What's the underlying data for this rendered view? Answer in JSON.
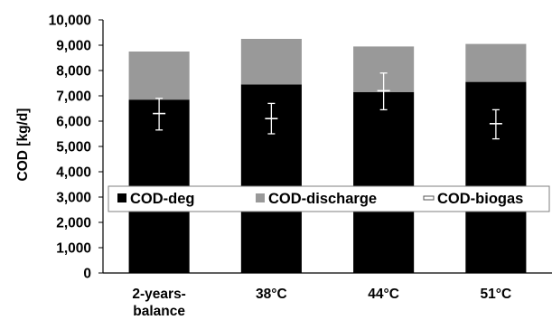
{
  "chart_data": {
    "type": "bar",
    "stacked": true,
    "ylabel": "COD [kg/d]",
    "xlabel": "",
    "title": "",
    "ylim": [
      0,
      10000
    ],
    "yticks": [
      0,
      1000,
      2000,
      3000,
      4000,
      5000,
      6000,
      7000,
      8000,
      9000,
      10000
    ],
    "ytick_labels": [
      "0",
      "1,000",
      "2,000",
      "3,000",
      "4,000",
      "5,000",
      "6,000",
      "7,000",
      "8,000",
      "9,000",
      "10,000"
    ],
    "categories": [
      [
        "2-years-",
        "balance"
      ],
      [
        "38°C"
      ],
      [
        "44°C"
      ],
      [
        "51°C"
      ]
    ],
    "series": [
      {
        "name": "COD-deg",
        "color": "#000000",
        "values": [
          6850,
          7450,
          7150,
          7550
        ]
      },
      {
        "name": "COD-discharge",
        "color": "#999999",
        "values": [
          1900,
          1800,
          1800,
          1500
        ]
      }
    ],
    "point_series": {
      "name": "COD-biogas",
      "values": [
        6300,
        6100,
        7200,
        5900
      ],
      "error_low": [
        5650,
        5500,
        6450,
        5300
      ],
      "error_high": [
        6900,
        6700,
        7900,
        6450
      ]
    },
    "grid": false,
    "legend": "middle"
  }
}
